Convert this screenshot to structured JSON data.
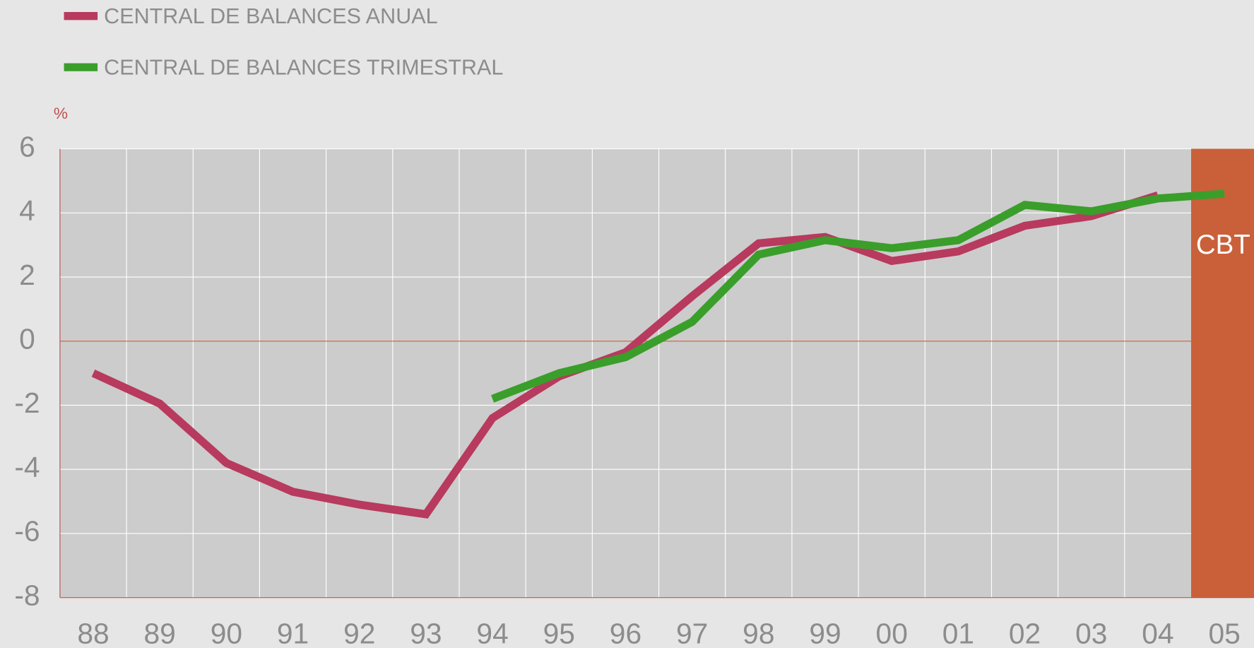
{
  "chart_data": {
    "type": "line",
    "y_unit": "%",
    "annotation": "CBT",
    "categories": [
      "88",
      "89",
      "90",
      "91",
      "92",
      "93",
      "94",
      "95",
      "96",
      "97",
      "98",
      "99",
      "00",
      "01",
      "02",
      "03",
      "04",
      "05"
    ],
    "series": [
      {
        "name": "CENTRAL DE BALANCES ANUAL",
        "color": "#b83a5e",
        "values": [
          -1.0,
          -1.95,
          -3.8,
          -4.7,
          -5.1,
          -5.4,
          -2.4,
          -1.1,
          -0.35,
          1.4,
          3.05,
          3.25,
          2.5,
          2.8,
          3.6,
          3.9,
          4.55,
          null
        ]
      },
      {
        "name": "CENTRAL DE BALANCES TRIMESTRAL",
        "color": "#3a9e2a",
        "values": [
          null,
          null,
          null,
          null,
          null,
          null,
          -1.8,
          -1.0,
          -0.5,
          0.6,
          2.7,
          3.15,
          2.9,
          3.15,
          4.25,
          4.05,
          4.45,
          4.6
        ]
      }
    ],
    "ylim": [
      -8,
      6
    ],
    "yticks": [
      6,
      4,
      2,
      0,
      -2,
      -4,
      -6,
      -8
    ],
    "grid": true,
    "legend": "top-left"
  }
}
